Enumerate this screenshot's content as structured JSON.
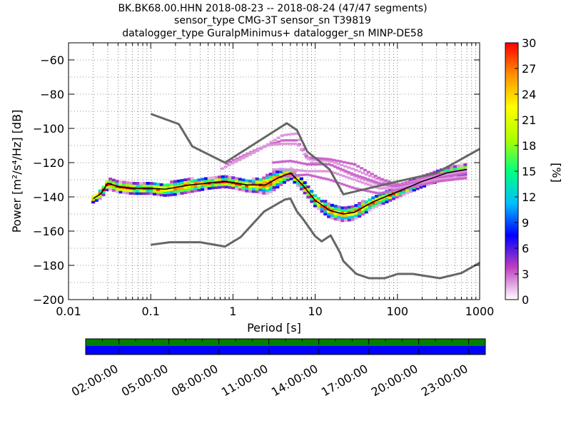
{
  "title_lines": [
    "BK.BK68.00.HHN   2018-08-23 -- 2018-08-24  (47/47 segments)",
    "sensor_type CMG-3T sensor_sn T39819",
    "datalogger_type GuralpMinimus+ datalogger_sn MINP-DE58"
  ],
  "chart_data": {
    "type": "heatmap",
    "xlabel": "Period [s]",
    "ylabel": "Power [m²/s⁴/Hz] [dB]",
    "x_scale": "log",
    "xlim": [
      0.01,
      1000
    ],
    "ylim": [
      -200,
      -50
    ],
    "x_tick_labels": [
      "0.01",
      "0.1",
      "1",
      "10",
      "100",
      "1000"
    ],
    "x_tick_values": [
      0.01,
      0.1,
      1,
      10,
      100,
      1000
    ],
    "y_tick_labels": [
      "−200",
      "−180",
      "−160",
      "−140",
      "−120",
      "−100",
      "−80",
      "−60"
    ],
    "y_tick_values": [
      -200,
      -180,
      -160,
      -140,
      -120,
      -100,
      -80,
      -60
    ],
    "grid": true,
    "colorbar": {
      "label": "[%]",
      "range": [
        0,
        30
      ],
      "tick_labels": [
        "0",
        "3",
        "6",
        "9",
        "12",
        "15",
        "18",
        "21",
        "24",
        "27",
        "30"
      ],
      "tick_values": [
        0,
        3,
        6,
        9,
        12,
        15,
        18,
        21,
        24,
        27,
        30
      ],
      "colors": [
        "#ffffff",
        "#bf3fbf",
        "#0000ff",
        "#00c0ff",
        "#00ff80",
        "#b0ff00",
        "#ffff00",
        "#ff9000",
        "#ff0000"
      ]
    },
    "series": [
      {
        "name": "NHNM",
        "color": "#666666",
        "points": [
          [
            0.1,
            -91.5
          ],
          [
            0.22,
            -97.5
          ],
          [
            0.32,
            -110.5
          ],
          [
            0.8,
            -120
          ],
          [
            4.5,
            -97
          ],
          [
            6,
            -101
          ],
          [
            8,
            -113.5
          ],
          [
            15,
            -124
          ],
          [
            22,
            -138.5
          ],
          [
            100,
            -131
          ],
          [
            300,
            -126
          ],
          [
            1000,
            -112
          ]
        ]
      },
      {
        "name": "NLNM",
        "color": "#666666",
        "points": [
          [
            0.1,
            -168
          ],
          [
            0.17,
            -166.5
          ],
          [
            0.4,
            -166.5
          ],
          [
            0.8,
            -169
          ],
          [
            1.24,
            -163.5
          ],
          [
            2.4,
            -148.5
          ],
          [
            4.3,
            -141.5
          ],
          [
            5,
            -141
          ],
          [
            6,
            -148.5
          ],
          [
            7,
            -152.5
          ],
          [
            10,
            -163
          ],
          [
            12,
            -166
          ],
          [
            15.4,
            -162.5
          ],
          [
            20,
            -172.5
          ],
          [
            22,
            -177.5
          ],
          [
            31.6,
            -185
          ],
          [
            45,
            -187.5
          ],
          [
            70,
            -187.5
          ],
          [
            101,
            -185
          ],
          [
            154,
            -185
          ],
          [
            328,
            -187.5
          ],
          [
            600,
            -184.5
          ],
          [
            1000,
            -178.5
          ]
        ]
      },
      {
        "name": "median",
        "color": "#000000",
        "points": [
          [
            0.02,
            -141
          ],
          [
            0.025,
            -138
          ],
          [
            0.03,
            -132
          ],
          [
            0.04,
            -134
          ],
          [
            0.06,
            -135
          ],
          [
            0.1,
            -135
          ],
          [
            0.15,
            -135.5
          ],
          [
            0.3,
            -133
          ],
          [
            0.5,
            -132
          ],
          [
            0.8,
            -131
          ],
          [
            1.5,
            -133
          ],
          [
            2.5,
            -133
          ],
          [
            3.5,
            -129
          ],
          [
            5,
            -126
          ],
          [
            7,
            -133
          ],
          [
            10,
            -142
          ],
          [
            15,
            -148
          ],
          [
            22,
            -150
          ],
          [
            30,
            -149
          ],
          [
            50,
            -143
          ],
          [
            100,
            -137
          ],
          [
            200,
            -131
          ],
          [
            400,
            -126
          ],
          [
            700,
            -124
          ]
        ]
      }
    ],
    "secondary_curves": [
      {
        "name": "",
        "points": [
          [
            0.7,
            -124
          ],
          [
            2,
            -113
          ],
          [
            4,
            -104
          ],
          [
            6,
            -103
          ],
          [
            8,
            -118
          ],
          [
            15,
            -119
          ],
          [
            30,
            -124
          ],
          [
            60,
            -130
          ],
          [
            100,
            -134
          ],
          [
            300,
            -128
          ],
          [
            700,
            -124
          ]
        ]
      },
      {
        "name": "",
        "points": [
          [
            0.8,
            -121
          ],
          [
            2,
            -112
          ],
          [
            4,
            -107
          ],
          [
            6,
            -107
          ],
          [
            8,
            -117
          ],
          [
            15,
            -118
          ],
          [
            30,
            -121
          ],
          [
            60,
            -129
          ],
          [
            100,
            -133
          ],
          [
            300,
            -127
          ],
          [
            700,
            -124
          ]
        ]
      },
      {
        "name": "",
        "points": [
          [
            1,
            -120
          ],
          [
            2.5,
            -110
          ],
          [
            4,
            -109
          ],
          [
            6,
            -109
          ],
          [
            9,
            -120
          ],
          [
            15,
            -121
          ],
          [
            30,
            -128
          ],
          [
            60,
            -133
          ],
          [
            100,
            -134
          ],
          [
            300,
            -128
          ],
          [
            700,
            -125
          ]
        ]
      },
      {
        "name": "",
        "points": [
          [
            3,
            -120
          ],
          [
            5,
            -119
          ],
          [
            8,
            -121
          ],
          [
            15,
            -121
          ],
          [
            30,
            -127
          ],
          [
            60,
            -132
          ],
          [
            100,
            -134
          ],
          [
            300,
            -129
          ],
          [
            700,
            -126
          ]
        ]
      },
      {
        "name": "",
        "points": [
          [
            3,
            -124
          ],
          [
            5,
            -124
          ],
          [
            8,
            -125
          ],
          [
            15,
            -125
          ],
          [
            30,
            -130
          ],
          [
            60,
            -135
          ],
          [
            100,
            -135
          ],
          [
            300,
            -130
          ],
          [
            700,
            -128
          ]
        ]
      },
      {
        "name": "",
        "points": [
          [
            4,
            -128
          ],
          [
            8,
            -127
          ],
          [
            15,
            -130
          ],
          [
            30,
            -135
          ],
          [
            60,
            -138
          ],
          [
            100,
            -136
          ],
          [
            300,
            -131
          ],
          [
            700,
            -129
          ]
        ]
      }
    ],
    "band_halfwidth_db": [
      [
        0.02,
        2
      ],
      [
        0.03,
        3
      ],
      [
        0.05,
        3
      ],
      [
        0.1,
        3
      ],
      [
        0.2,
        4
      ],
      [
        0.3,
        4
      ],
      [
        0.5,
        3
      ],
      [
        1,
        3
      ],
      [
        2,
        4
      ],
      [
        3,
        6
      ],
      [
        5,
        3
      ],
      [
        8,
        3
      ],
      [
        15,
        4
      ],
      [
        30,
        4
      ],
      [
        100,
        3
      ],
      [
        300,
        3
      ],
      [
        700,
        3
      ]
    ]
  },
  "coverage_bar": {
    "time_tick_labels": [
      "02:00:00",
      "05:00:00",
      "08:00:00",
      "11:00:00",
      "14:00:00",
      "17:00:00",
      "20:00:00",
      "23:00:00"
    ],
    "time_tick_hours": [
      2,
      5,
      8,
      11,
      14,
      17,
      20,
      23
    ],
    "time_range_hours": [
      0,
      24
    ],
    "top_color": "#008000",
    "bottom_color": "#0000ff"
  }
}
